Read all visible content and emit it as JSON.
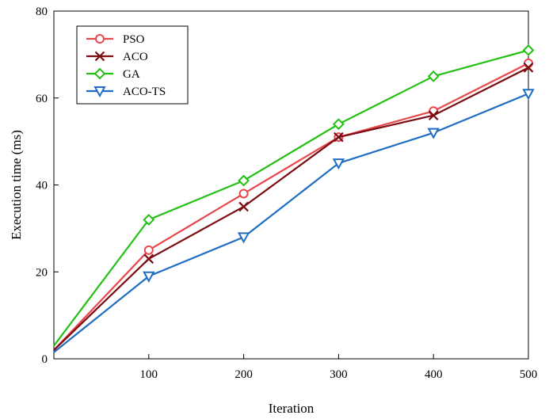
{
  "chart_data": {
    "type": "line",
    "title": "",
    "xlabel": "Iteration",
    "ylabel": "Execution time (ms)",
    "xlim": [
      0,
      500
    ],
    "ylim": [
      0,
      80
    ],
    "x_ticks": [
      100,
      200,
      300,
      400,
      500
    ],
    "y_ticks": [
      0,
      20,
      40,
      60,
      80
    ],
    "grid": false,
    "legend_position": "top-left",
    "x": [
      0,
      100,
      200,
      300,
      400,
      500
    ],
    "series": [
      {
        "name": "PSO",
        "values": [
          2,
          25,
          38,
          51,
          57,
          68
        ],
        "color": "#e8474c",
        "marker": "circle"
      },
      {
        "name": "ACO",
        "values": [
          2,
          23,
          35,
          51,
          56,
          67
        ],
        "color": "#7a0c12",
        "marker": "x"
      },
      {
        "name": "GA",
        "values": [
          3,
          32,
          41,
          54,
          65,
          71
        ],
        "color": "#22c013",
        "marker": "diamond"
      },
      {
        "name": "ACO-TS",
        "values": [
          1.5,
          19,
          28,
          45,
          52,
          61
        ],
        "color": "#1f6dc2",
        "marker": "triangle-down"
      }
    ]
  }
}
